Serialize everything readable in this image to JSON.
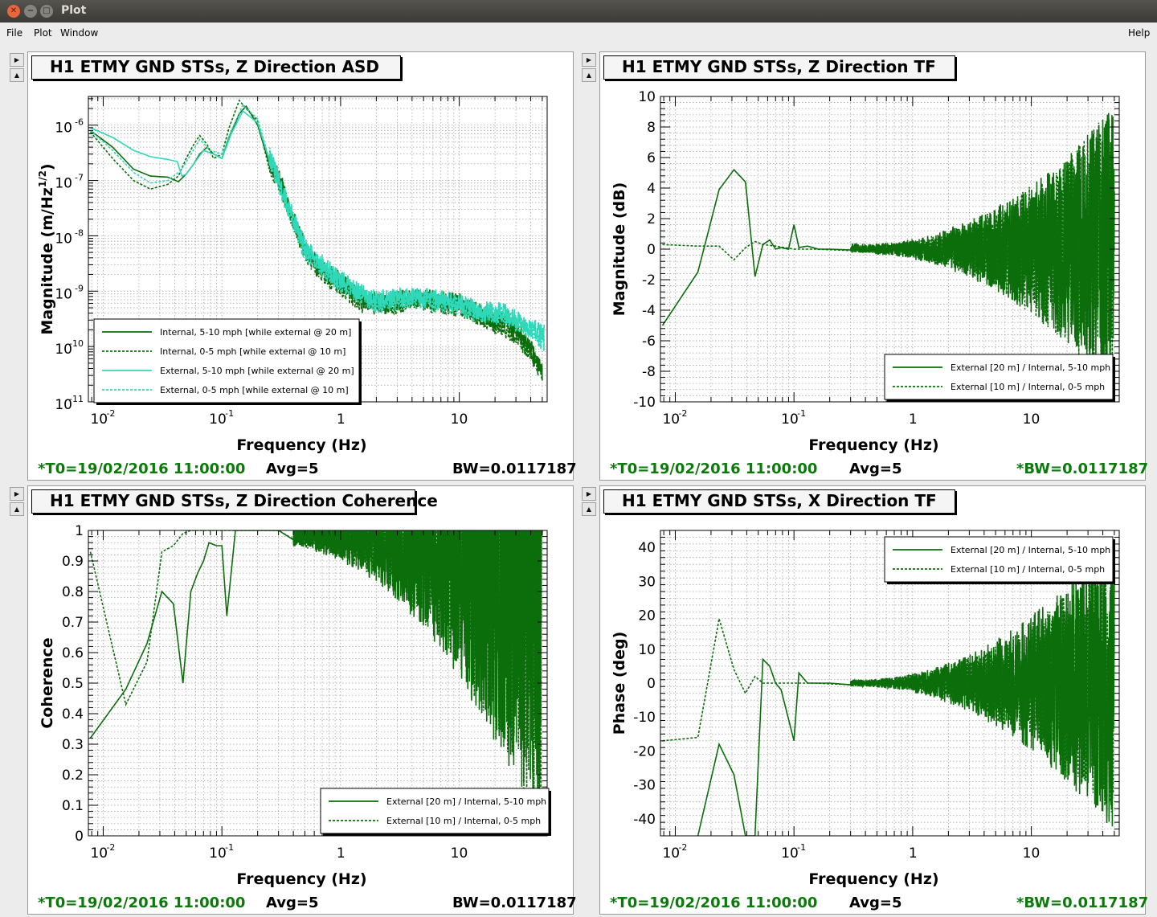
{
  "window": {
    "title": "Plot"
  },
  "menu": {
    "file": "File",
    "plot": "Plot",
    "window": "Window",
    "help": "Help"
  },
  "panels": [
    {
      "title": "H1 ETMY GND STSs, Z Direction ASD",
      "footer": {
        "t0": "*T0=19/02/2016 11:00:00",
        "avg": "Avg=5",
        "bw": "BW=0.0117187"
      },
      "ylabel": "Magnitude (m/Hz",
      "ylabel_sup": "1/2",
      "ylabel_close": ")",
      "xlabel": "Frequency (Hz)",
      "legend": [
        "Internal, 5-10 mph [while external @ 20 m]",
        "Internal, 0-5 mph [while external @ 10 m]",
        "External, 5-10 mph [while external @ 20 m]",
        "External, 0-5 mph [while external @ 10 m]"
      ]
    },
    {
      "title": "H1 ETMY GND STSs, Z Direction TF",
      "footer": {
        "t0": "*T0=19/02/2016 11:00:00",
        "avg": "Avg=5",
        "bw": "*BW=0.0117187"
      },
      "ylabel": "Magnitude (dB)",
      "xlabel": "Frequency (Hz)",
      "legend": [
        "External [20 m] / Internal, 5-10 mph",
        "External [10 m] / Internal, 0-5 mph"
      ]
    },
    {
      "title": "H1 ETMY GND STSs, Z Direction Coherence",
      "footer": {
        "t0": "*T0=19/02/2016 11:00:00",
        "avg": "Avg=5",
        "bw": "BW=0.0117187"
      },
      "ylabel": "Coherence",
      "xlabel": "Frequency (Hz)",
      "legend": [
        "External [20 m] / Internal, 5-10 mph",
        "External [10 m] / Internal, 0-5 mph"
      ]
    },
    {
      "title": "H1 ETMY GND STSs, X Direction TF",
      "footer": {
        "t0": "*T0=19/02/2016 11:00:00",
        "avg": "Avg=5",
        "bw": "*BW=0.0117187"
      },
      "ylabel": "Phase (deg)",
      "xlabel": "Frequency (Hz)",
      "legend": [
        "External [20 m] / Internal, 5-10 mph",
        "External [10 m] / Internal, 0-5 mph"
      ]
    }
  ],
  "chart_data": [
    {
      "type": "line",
      "x_scale": "log",
      "y_scale": "log",
      "xlim": [
        0.0075,
        55
      ],
      "ylim": [
        1e-11,
        3.3e-06
      ],
      "xticks": [
        "10",
        "-2",
        "10",
        "-1",
        "1",
        "10"
      ],
      "yticks": [
        [
          "10",
          "-6"
        ],
        [
          "10",
          "-7"
        ],
        [
          "10",
          "-8"
        ],
        [
          "10",
          "-9"
        ],
        [
          "10",
          "-10"
        ],
        [
          "10",
          "-11"
        ]
      ],
      "grid": true,
      "legend_position": "bottom-left",
      "series": [
        {
          "style": "solid",
          "color": "#0b6e0b",
          "x": [
            0.0078,
            0.012,
            0.018,
            0.025,
            0.035,
            0.043,
            0.05,
            0.058,
            0.065,
            0.075,
            0.085,
            0.1,
            0.115,
            0.14,
            0.16,
            0.2,
            0.25,
            0.32,
            0.4,
            0.5,
            0.7,
            1,
            1.5,
            2.5,
            4,
            6,
            10,
            15,
            20,
            25,
            30,
            40,
            50
          ],
          "y": [
            8e-07,
            4e-07,
            1.6e-07,
            1.2e-07,
            1.15e-07,
            9.5e-08,
            1.3e-07,
            2e-07,
            3e-07,
            4e-07,
            3e-07,
            2.5e-07,
            6e-07,
            1.6e-06,
            2.2e-06,
            1e-06,
            2.5e-07,
            8e-08,
            2e-08,
            6e-09,
            2.5e-09,
            1.5e-09,
            7e-10,
            6e-10,
            8e-10,
            7e-10,
            6e-10,
            4e-10,
            3e-10,
            3e-10,
            2e-10,
            1e-10,
            3.5e-11
          ]
        },
        {
          "style": "dashed",
          "color": "#0b6e0b",
          "x": [
            0.0078,
            0.012,
            0.018,
            0.025,
            0.035,
            0.043,
            0.05,
            0.058,
            0.065,
            0.075,
            0.085,
            0.1,
            0.115,
            0.14,
            0.16,
            0.2,
            0.25,
            0.32,
            0.4,
            0.5,
            0.7,
            1,
            1.5,
            2.5,
            4,
            6,
            10,
            15,
            20,
            25,
            30,
            40,
            50
          ],
          "y": [
            7.5e-07,
            2.5e-07,
            1e-07,
            7e-08,
            8.5e-08,
            1.2e-07,
            2.5e-07,
            4.5e-07,
            6.5e-07,
            4.5e-07,
            2.5e-07,
            3e-07,
            9e-07,
            2.8e-06,
            2e-06,
            1.2e-06,
            2e-07,
            7e-08,
            1.8e-08,
            5e-09,
            2e-09,
            1.2e-09,
            6e-10,
            5e-10,
            7e-10,
            6e-10,
            5e-10,
            3.5e-10,
            2.5e-10,
            2e-10,
            1.5e-10,
            8e-11,
            3e-11
          ]
        },
        {
          "style": "solid",
          "color": "#2fd8b8",
          "x": [
            0.0078,
            0.012,
            0.018,
            0.025,
            0.035,
            0.042,
            0.046,
            0.05,
            0.058,
            0.07,
            0.085,
            0.1,
            0.12,
            0.15,
            0.2,
            0.3,
            0.5,
            1,
            2,
            4,
            8,
            15,
            25,
            35,
            45,
            52
          ],
          "y": [
            9e-07,
            6e-07,
            3.5e-07,
            2.7e-07,
            2.4e-07,
            2.2e-07,
            1.2e-07,
            1.3e-07,
            2e-07,
            3.5e-07,
            3e-07,
            2.5e-07,
            7e-07,
            1.8e-06,
            1.1e-06,
            1e-07,
            6e-09,
            1.5e-09,
            7e-10,
            8e-10,
            7e-10,
            4.5e-10,
            4e-10,
            2.5e-10,
            2e-10,
            1.8e-10
          ]
        },
        {
          "style": "dashed",
          "color": "#2fd8b8",
          "x": [
            0.0078,
            0.012,
            0.018,
            0.025,
            0.035,
            0.045,
            0.055,
            0.065,
            0.08,
            0.1,
            0.12,
            0.15,
            0.2,
            0.3,
            0.5,
            1,
            2,
            4,
            8,
            15,
            25,
            35,
            45,
            52
          ],
          "y": [
            8e-07,
            3.5e-07,
            1.4e-07,
            9e-08,
            1e-07,
            1.5e-07,
            3e-07,
            5.5e-07,
            3.5e-07,
            3e-07,
            8e-07,
            2.3e-06,
            1.3e-06,
            9e-08,
            5e-09,
            1.3e-09,
            6e-10,
            7e-10,
            6e-10,
            4e-10,
            3.5e-10,
            2.2e-10,
            1.5e-10,
            1.2e-10
          ]
        }
      ]
    },
    {
      "type": "line",
      "x_scale": "log",
      "y_scale": "linear",
      "xlim": [
        0.0075,
        55
      ],
      "ylim": [
        -10,
        10
      ],
      "xticks": [
        "10",
        "-2",
        "10",
        "-1",
        "1",
        "10"
      ],
      "yticks": [
        -10,
        -8,
        -6,
        -4,
        -2,
        0,
        2,
        4,
        6,
        8,
        10
      ],
      "grid": true,
      "legend_position": "bottom-right",
      "series": [
        {
          "style": "solid",
          "color": "#0b6e0b",
          "x": [
            0.0078,
            0.0155,
            0.0234,
            0.0312,
            0.039,
            0.047,
            0.0547,
            0.0625,
            0.07,
            0.078,
            0.09,
            0.1,
            0.11,
            0.13,
            0.16,
            0.2,
            0.3,
            0.5,
            0.7,
            1,
            1.5,
            2,
            3,
            4,
            6,
            10,
            15,
            20,
            30,
            50
          ],
          "y": [
            -5,
            -1.5,
            3.9,
            5.2,
            4.4,
            -1.8,
            0.3,
            0.6,
            0,
            0.1,
            0,
            1.6,
            0.1,
            0.2,
            0,
            0,
            0.1,
            0,
            0,
            0,
            0,
            0,
            0,
            0,
            0,
            0,
            0,
            0,
            0,
            0
          ],
          "noise_from": 0.3,
          "noise_amp": [
            0.3,
            9.5
          ]
        },
        {
          "style": "dashed",
          "color": "#0b6e0b",
          "x": [
            0.0078,
            0.0155,
            0.0234,
            0.0312,
            0.039,
            0.047,
            0.0547,
            0.07,
            0.1,
            0.15,
            0.3,
            1,
            50
          ],
          "y": [
            0.3,
            0.2,
            0.2,
            -0.7,
            0.1,
            0.5,
            0.3,
            0.2,
            0,
            0,
            0,
            0,
            0
          ],
          "noise_from": 0.3,
          "noise_amp": [
            0.2,
            9.5
          ]
        }
      ]
    },
    {
      "type": "line",
      "x_scale": "log",
      "y_scale": "linear",
      "xlim": [
        0.0075,
        55
      ],
      "ylim": [
        0,
        1
      ],
      "xticks": [
        "10",
        "-2",
        "10",
        "-1",
        "1",
        "10"
      ],
      "yticks": [
        0,
        0.1,
        0.2,
        0.3,
        0.4,
        0.5,
        0.6,
        0.7,
        0.8,
        0.9,
        1
      ],
      "grid": true,
      "legend_position": "bottom-right",
      "series": [
        {
          "style": "solid",
          "color": "#0b6e0b",
          "x": [
            0.0078,
            0.0155,
            0.0234,
            0.0312,
            0.039,
            0.047,
            0.0547,
            0.0625,
            0.07,
            0.078,
            0.09,
            0.1,
            0.11,
            0.13,
            0.16,
            0.2,
            0.3,
            0.5,
            0.7,
            1,
            50
          ],
          "y": [
            0.32,
            0.48,
            0.63,
            0.8,
            0.76,
            0.5,
            0.8,
            0.86,
            0.9,
            0.96,
            0.95,
            0.95,
            0.72,
            1,
            1,
            1,
            1,
            0.99,
            0.98,
            0.97,
            0.9
          ],
          "noise_from": 0.4,
          "noise_amp": [
            0.05,
            0.95
          ]
        },
        {
          "style": "dashed",
          "color": "#0b6e0b",
          "x": [
            0.0078,
            0.0155,
            0.0234,
            0.0312,
            0.039,
            0.047,
            0.0547,
            0.07,
            0.1,
            0.15,
            0.3,
            1,
            50
          ],
          "y": [
            0.93,
            0.43,
            0.57,
            0.93,
            0.95,
            0.99,
            1,
            1,
            1,
            1,
            1,
            0.98,
            0.9
          ],
          "noise_from": 0.4,
          "noise_amp": [
            0.05,
            0.9
          ]
        }
      ]
    },
    {
      "type": "line",
      "x_scale": "log",
      "y_scale": "linear",
      "xlim": [
        0.0075,
        55
      ],
      "ylim": [
        -45,
        45
      ],
      "xticks": [
        "10",
        "-2",
        "10",
        "-1",
        "1",
        "10"
      ],
      "yticks": [
        -40,
        -30,
        -20,
        -10,
        0,
        10,
        20,
        30,
        40
      ],
      "grid": true,
      "legend_position": "top-right",
      "series": [
        {
          "style": "solid",
          "color": "#0b6e0b",
          "x": [
            0.0155,
            0.0234,
            0.0312,
            0.039,
            0.047,
            0.0547,
            0.0625,
            0.07,
            0.078,
            0.1,
            0.11,
            0.13,
            0.16,
            0.2,
            0.3,
            0.5,
            1,
            50
          ],
          "y": [
            -45,
            -18,
            -27,
            -45,
            -45,
            7,
            5,
            0,
            -2,
            -17,
            3,
            0,
            0,
            0,
            0,
            0,
            0,
            0
          ],
          "noise_from": 0.3,
          "noise_amp": [
            1,
            45
          ]
        },
        {
          "style": "dashed",
          "color": "#0b6e0b",
          "x": [
            0.0078,
            0.0155,
            0.0234,
            0.0312,
            0.039,
            0.047,
            0.0547,
            0.07,
            0.1,
            0.15,
            0.3,
            1,
            50
          ],
          "y": [
            -17,
            -16,
            19,
            4,
            -3,
            2,
            0,
            0,
            0,
            0,
            0,
            0,
            0
          ],
          "noise_from": 0.3,
          "noise_amp": [
            1,
            40
          ]
        }
      ]
    }
  ]
}
